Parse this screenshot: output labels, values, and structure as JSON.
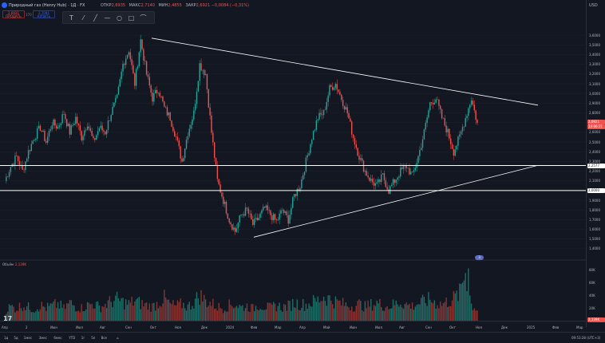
{
  "header": {
    "title": "Природный газ (Henry Hub) · 1Д · FX",
    "ohlc": [
      {
        "label": "ОТКР",
        "value": "2,6935"
      },
      {
        "label": "МАКС",
        "value": "2,7140"
      },
      {
        "label": "МИН",
        "value": "2,4855"
      },
      {
        "label": "ЗАКР",
        "value": "2,6921 −0,0084 (−0,31%)"
      }
    ]
  },
  "trade": {
    "sell_price": "2,6921",
    "sell_label": "ПРОДАТЬ",
    "buy_price": "2,7091",
    "buy_label": "КУПИТЬ",
    "spread": "170"
  },
  "drawing_tools": [
    "text-tool-icon",
    "brush-icon",
    "line-icon",
    "horizontal-line-icon",
    "ellipse-icon",
    "rectangle-icon",
    "path-icon"
  ],
  "price_axis": {
    "currency": "USD",
    "ticks": [
      "3,6000",
      "3,5000",
      "3,4000",
      "3,3000",
      "3,2000",
      "3,1000",
      "3,0000",
      "2,9000",
      "2,8000",
      "2,7000",
      "2,6000",
      "2,5000",
      "2,4000",
      "2,3000",
      "2,2000",
      "2,1000",
      "2,0000",
      "1,9000",
      "1,8000",
      "1,7000",
      "1,6000",
      "1,5000",
      "1,4000"
    ],
    "current_price": "2,6921",
    "current_countdown": "14:06:31",
    "line_label_upper": "2,2577",
    "line_label_lower": "2,0000"
  },
  "volume": {
    "label": "Объём",
    "value": "2,139K",
    "ticks": [
      "80K",
      "60K",
      "40K",
      "20K"
    ],
    "current": "2,139K"
  },
  "time_axis": [
    "Апр",
    "2",
    "Июн",
    "Июл",
    "Авг",
    "Сен",
    "Окт",
    "Ноя",
    "Дек",
    "2024",
    "Фев",
    "Мар",
    "Апр",
    "Май",
    "Июн",
    "Июл",
    "Авг",
    "Сен",
    "Окт",
    "Ноя",
    "Дек",
    "2025",
    "Фев",
    "Мар"
  ],
  "timeframes": [
    "1д",
    "5д",
    "1мес",
    "3мес",
    "6мес",
    "YTD",
    "1г",
    "5л",
    "Все"
  ],
  "clock": "09:53:28 (UTC+3)",
  "event_badge": "3",
  "colors": {
    "bg": "#131722",
    "up": "#26a69a",
    "down": "#ef5350",
    "line": "#ffffff",
    "grid": "#1e222d"
  },
  "chart_data": {
    "type": "candlestick",
    "ylim": [
      1.35,
      3.7
    ],
    "horizontal_levels": [
      2.2577,
      2.0
    ],
    "trendlines": [
      {
        "from": [
          "2023-Sep",
          3.57
        ],
        "to": [
          "2025-Jan",
          2.88
        ]
      },
      {
        "from": [
          "2024-Feb",
          1.52
        ],
        "to": [
          "2025-Jan",
          2.26
        ]
      }
    ],
    "price_path": [
      2.1,
      2.25,
      2.35,
      2.2,
      2.4,
      2.55,
      2.65,
      2.5,
      2.7,
      2.65,
      2.8,
      2.6,
      2.75,
      2.55,
      2.7,
      2.5,
      2.65,
      2.6,
      2.8,
      2.95,
      3.3,
      3.45,
      3.1,
      3.55,
      3.2,
      2.95,
      3.05,
      2.85,
      2.75,
      2.55,
      2.3,
      2.6,
      2.8,
      3.3,
      3.2,
      2.6,
      2.1,
      1.9,
      1.7,
      1.58,
      1.75,
      1.8,
      1.65,
      1.72,
      1.82,
      1.75,
      1.68,
      1.8,
      1.7,
      1.95,
      2.05,
      2.3,
      2.55,
      2.75,
      2.8,
      3.05,
      3.1,
      2.95,
      2.8,
      2.55,
      2.35,
      2.2,
      2.1,
      2.05,
      2.15,
      2.0,
      2.1,
      2.2,
      2.25,
      2.15,
      2.35,
      2.6,
      2.9,
      2.95,
      2.75,
      2.6,
      2.4,
      2.55,
      2.75,
      2.95,
      2.69
    ],
    "volume_path": [
      16,
      22,
      19,
      25,
      21,
      18,
      24,
      20,
      23,
      26,
      19,
      28,
      22,
      20,
      24,
      27,
      21,
      25,
      30,
      33,
      29,
      26,
      31,
      27,
      24,
      22,
      28,
      35,
      25,
      23,
      26,
      22,
      29,
      40,
      31,
      27,
      22,
      20,
      24,
      26,
      21,
      23,
      19,
      25,
      22,
      20,
      24,
      21,
      23,
      28,
      26,
      25,
      29,
      32,
      38,
      34,
      30,
      27,
      24,
      23,
      26,
      22,
      25,
      28,
      24,
      22,
      26,
      29,
      25,
      23,
      27,
      30,
      33,
      28,
      26,
      30,
      35,
      42,
      80,
      25,
      18
    ]
  }
}
